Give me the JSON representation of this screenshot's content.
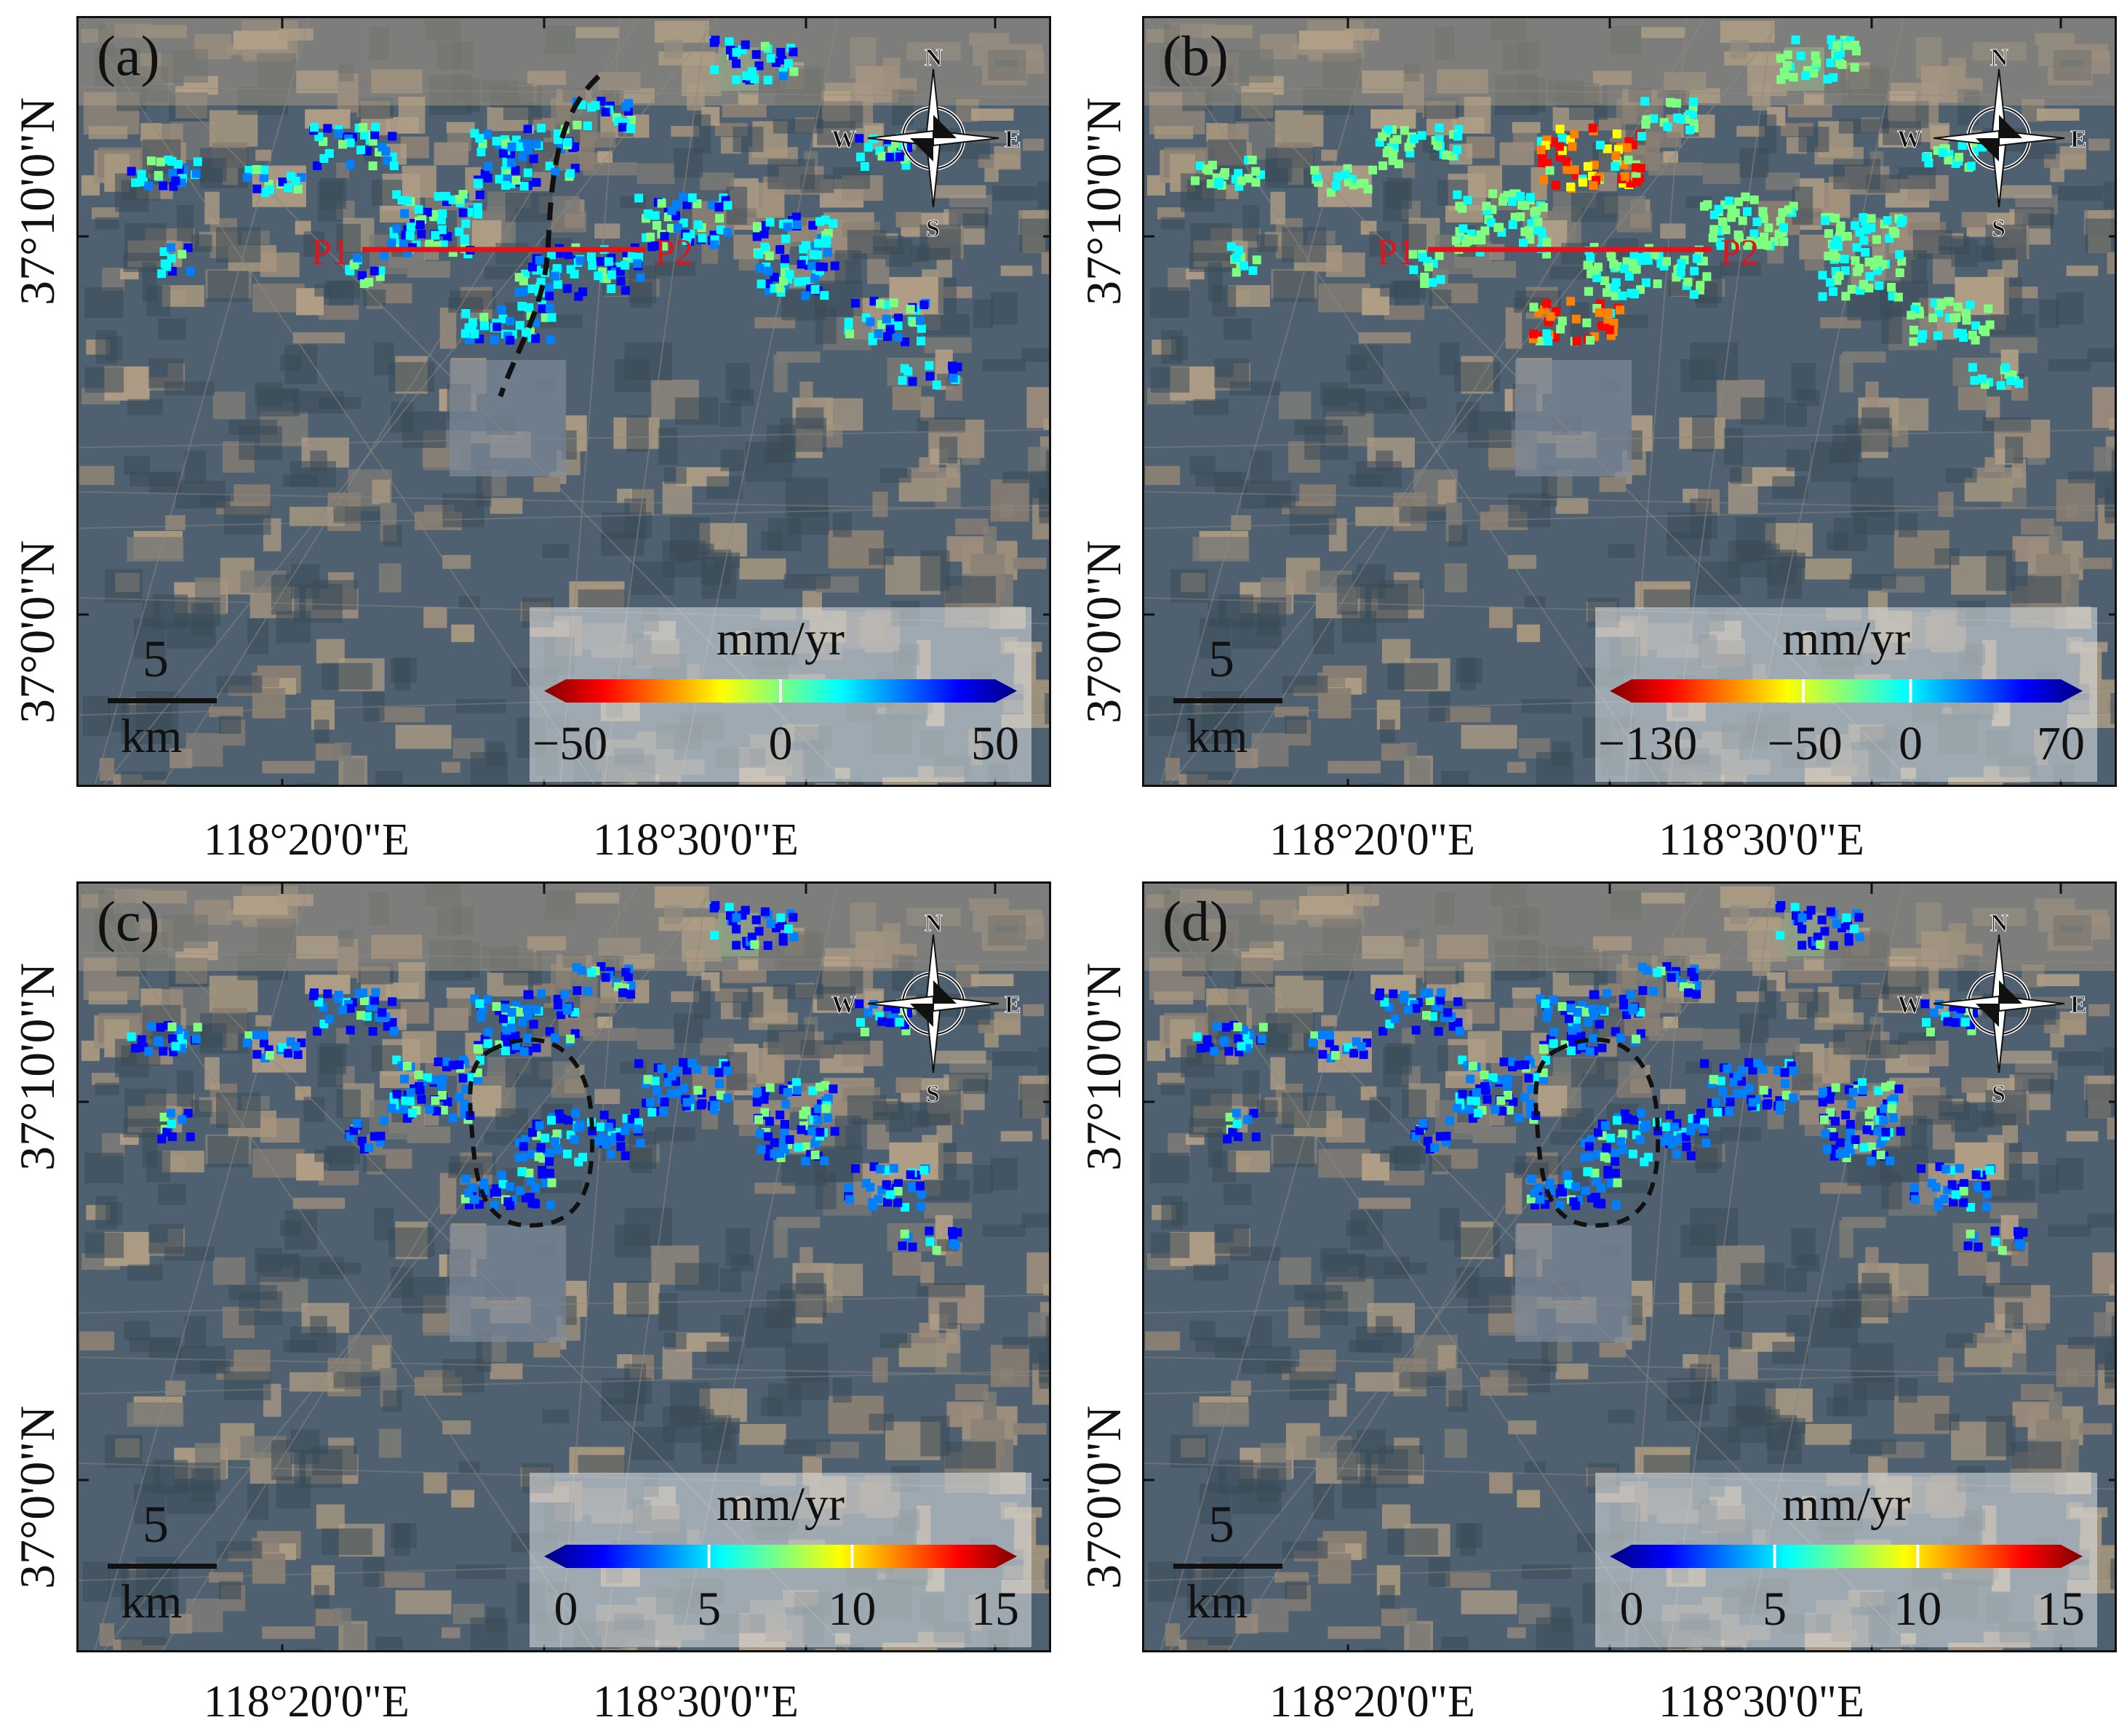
{
  "panels": [
    {
      "id": "a",
      "label": "(a)",
      "profile": {
        "start": "P1",
        "end": "P2"
      },
      "has_fault_line": true,
      "has_ellipse": false,
      "colorbar": {
        "unit": "mm/yr",
        "colormap": "jet_reversed",
        "ticks": [
          "−50",
          "0",
          "50"
        ],
        "range": [
          -50,
          50
        ]
      }
    },
    {
      "id": "b",
      "label": "(b)",
      "profile": {
        "start": "P1",
        "end": "P2"
      },
      "has_fault_line": false,
      "has_ellipse": false,
      "colorbar": {
        "unit": "mm/yr",
        "colormap": "jet_reversed",
        "ticks": [
          "−130",
          "−50",
          "0",
          "70"
        ],
        "range": [
          -130,
          70
        ]
      }
    },
    {
      "id": "c",
      "label": "(c)",
      "profile": null,
      "has_fault_line": false,
      "has_ellipse": true,
      "colorbar": {
        "unit": "mm/yr",
        "colormap": "jet",
        "ticks": [
          "0",
          "5",
          "10",
          "15"
        ],
        "range": [
          0,
          15
        ]
      }
    },
    {
      "id": "d",
      "label": "(d)",
      "profile": null,
      "has_fault_line": false,
      "has_ellipse": true,
      "colorbar": {
        "unit": "mm/yr",
        "colormap": "jet",
        "ticks": [
          "0",
          "5",
          "10",
          "15"
        ],
        "range": [
          0,
          15
        ]
      }
    }
  ],
  "axes": {
    "lat_labels": [
      "37°10'0\"N",
      "37°0'0\"N"
    ],
    "lon_labels": [
      "118°20'0\"E",
      "118°30'0\"E"
    ]
  },
  "scalebar": {
    "value": "5",
    "unit": "km"
  },
  "compass": {
    "n": "N",
    "s": "S",
    "e": "E",
    "w": "W"
  },
  "colors": {
    "profile_line": "#e0141b",
    "fault_line": "#111111"
  }
}
